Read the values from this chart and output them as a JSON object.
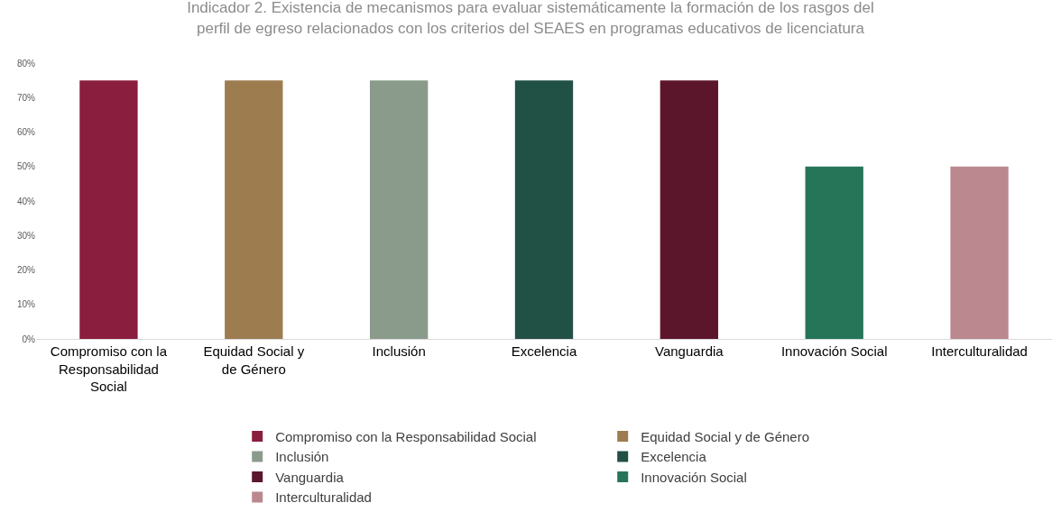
{
  "chart_data": {
    "type": "bar",
    "title": "Indicador 2. Existencia de mecanismos para evaluar sistemáticamente la formación de los rasgos del perfil de egreso relacionados con los criterios del SEAES en programas educativos de licenciatura",
    "categories": [
      "Compromiso con la Responsabilidad Social",
      "Equidad Social y de Género",
      "Inclusión",
      "Excelencia",
      "Vanguardia",
      "Innovación Social",
      "Interculturalidad"
    ],
    "series": [
      {
        "name": "Compromiso con la Responsabilidad Social",
        "color": "#8a1e3f",
        "values": [
          75,
          null,
          null,
          null,
          null,
          null,
          null
        ]
      },
      {
        "name": "Equidad Social y de Género",
        "color": "#9d7c4f",
        "values": [
          null,
          75,
          null,
          null,
          null,
          null,
          null
        ]
      },
      {
        "name": "Inclusión",
        "color": "#8a9b8c",
        "values": [
          null,
          null,
          75,
          null,
          null,
          null,
          null
        ]
      },
      {
        "name": "Excelencia",
        "color": "#215045",
        "values": [
          null,
          null,
          null,
          75,
          null,
          null,
          null
        ]
      },
      {
        "name": "Vanguardia",
        "color": "#5c162c",
        "values": [
          null,
          null,
          null,
          null,
          75,
          null,
          null
        ]
      },
      {
        "name": "Innovación Social",
        "color": "#277559",
        "values": [
          null,
          null,
          null,
          null,
          null,
          50,
          null
        ]
      },
      {
        "name": "Interculturalidad",
        "color": "#bb8890",
        "values": [
          null,
          null,
          null,
          null,
          null,
          null,
          50
        ]
      }
    ],
    "ylim": [
      0,
      80
    ],
    "yticks": [
      {
        "value": 0,
        "label": "0%"
      },
      {
        "value": 10,
        "label": "10%"
      },
      {
        "value": 20,
        "label": "20%"
      },
      {
        "value": 30,
        "label": "30%"
      },
      {
        "value": 40,
        "label": "40%"
      },
      {
        "value": 50,
        "label": "50%"
      },
      {
        "value": 60,
        "label": "60%"
      },
      {
        "value": 70,
        "label": "70%"
      },
      {
        "value": 80,
        "label": "80%"
      }
    ],
    "grid": false,
    "legend": "bottom"
  }
}
